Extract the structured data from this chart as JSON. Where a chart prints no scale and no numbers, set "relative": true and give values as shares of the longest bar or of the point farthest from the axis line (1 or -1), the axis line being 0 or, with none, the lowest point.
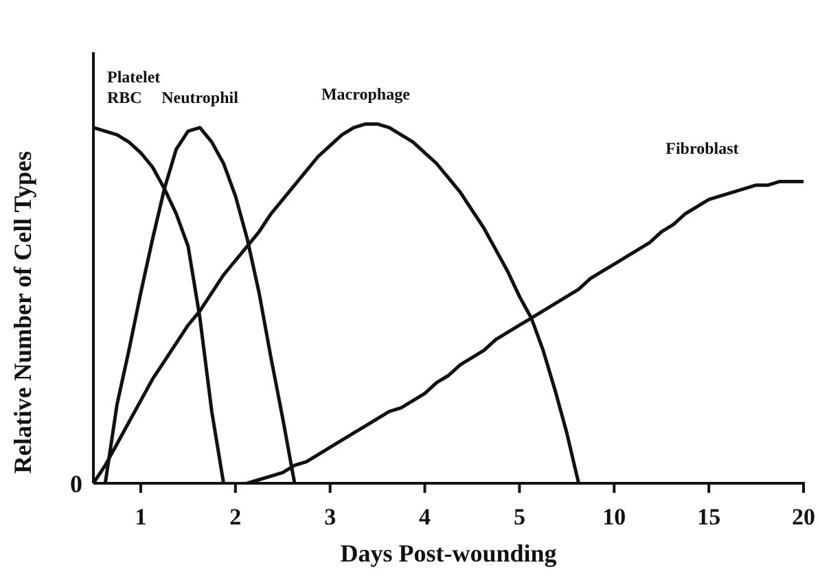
{
  "chart_data": {
    "type": "line",
    "relative": true,
    "xlabel": "Days Post-wounding",
    "ylabel": "Relative Number of Cell Types",
    "categories": [
      null,
      null,
      null,
      null,
      "1",
      null,
      null,
      null,
      null,
      null,
      null,
      null,
      "2",
      null,
      null,
      null,
      null,
      null,
      null,
      null,
      "3",
      null,
      null,
      null,
      null,
      null,
      null,
      null,
      "4",
      null,
      null,
      null,
      null,
      null,
      null,
      null,
      "5",
      null,
      null,
      null,
      null,
      null,
      null,
      null,
      "10",
      null,
      null,
      null,
      null,
      null,
      null,
      null,
      "15",
      null,
      null,
      null,
      null,
      null,
      null,
      null,
      "20"
    ],
    "annotations": [
      "0"
    ],
    "marker": "none",
    "line_style": "solid",
    "series": [
      {
        "name": "Platelet RBC",
        "color": "#111111",
        "values": [
          0.99,
          0.98,
          0.97,
          0.95,
          0.92,
          0.88,
          0.82,
          0.75,
          0.66,
          0.46,
          0.2,
          0,
          null,
          null,
          null,
          null,
          null,
          null,
          null,
          null,
          null,
          null,
          null,
          null,
          null,
          null,
          null,
          null,
          null,
          null,
          null,
          null,
          null,
          null,
          null,
          null,
          null,
          null,
          null,
          null,
          null,
          null,
          null,
          null,
          null,
          null,
          null,
          null,
          null,
          null,
          null,
          null,
          null,
          null,
          null,
          null,
          null,
          null,
          null,
          null,
          null
        ]
      },
      {
        "name": "Neutrophil",
        "color": "#111111",
        "values": [
          null,
          0,
          0.22,
          0.37,
          0.53,
          0.68,
          0.82,
          0.93,
          0.98,
          0.99,
          0.95,
          0.89,
          0.8,
          0.68,
          0.53,
          0.35,
          0.18,
          0,
          null,
          null,
          null,
          null,
          null,
          null,
          null,
          null,
          null,
          null,
          null,
          null,
          null,
          null,
          null,
          null,
          null,
          null,
          null,
          null,
          null,
          null,
          null,
          null,
          null,
          null,
          null,
          null,
          null,
          null,
          null,
          null,
          null,
          null,
          null,
          null,
          null,
          null,
          null,
          null,
          null,
          null,
          null
        ]
      },
      {
        "name": "Macrophage",
        "color": "#111111",
        "values": [
          0,
          0.05,
          0.11,
          0.17,
          0.23,
          0.29,
          0.34,
          0.39,
          0.44,
          0.48,
          0.53,
          0.58,
          0.62,
          0.66,
          0.7,
          0.75,
          0.79,
          0.83,
          0.87,
          0.91,
          0.94,
          0.97,
          0.99,
          1,
          1,
          0.99,
          0.97,
          0.95,
          0.92,
          0.89,
          0.85,
          0.81,
          0.76,
          0.71,
          0.65,
          0.59,
          0.52,
          0.46,
          0.37,
          0.26,
          0.14,
          0,
          null,
          null,
          null,
          null,
          null,
          null,
          null,
          null,
          null,
          null,
          null,
          null,
          null,
          null,
          null,
          null,
          null,
          null,
          null
        ]
      },
      {
        "name": "Fibroblast",
        "color": "#111111",
        "values": [
          null,
          null,
          null,
          null,
          null,
          null,
          null,
          null,
          null,
          null,
          null,
          null,
          null,
          0,
          0.01,
          0.02,
          0.03,
          0.05,
          0.06,
          0.08,
          0.1,
          0.12,
          0.14,
          0.16,
          0.18,
          0.2,
          0.21,
          0.23,
          0.25,
          0.28,
          0.3,
          0.33,
          0.35,
          0.37,
          0.4,
          0.42,
          0.44,
          0.46,
          0.48,
          0.5,
          0.52,
          0.54,
          0.57,
          0.59,
          0.61,
          0.63,
          0.65,
          0.67,
          0.7,
          0.72,
          0.75,
          0.77,
          0.79,
          0.8,
          0.81,
          0.82,
          0.83,
          0.83,
          0.84,
          0.84,
          0.84
        ]
      }
    ]
  }
}
